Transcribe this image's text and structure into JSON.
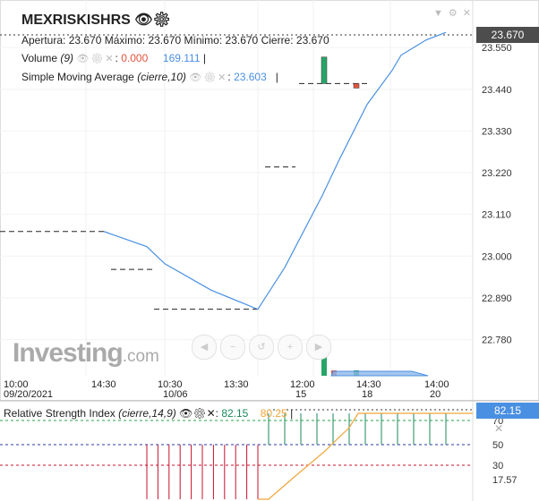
{
  "header": {
    "symbol": "MEXRISKISHRS",
    "ohlc_open_label": "Apertura:",
    "ohlc_open": "23.670",
    "ohlc_high_label": "Máximo:",
    "ohlc_high": "23.670",
    "ohlc_low_label": "Mínimo:",
    "ohlc_low": "23.670",
    "ohlc_close_label": "Cierre:",
    "ohlc_close": "23.670",
    "volume_label": "Volume",
    "volume_param": "(9)",
    "volume_value1": "0.000",
    "volume_value2": "169.111",
    "sma_label": "Simple Moving Average",
    "sma_param": "(cierre,10)",
    "sma_value": "23.603"
  },
  "logo": {
    "main": "Investing",
    "suffix": ".com"
  },
  "price_box": "23.670",
  "rsi": {
    "label": "Relative Strength Index",
    "param": "(cierre,14,9)",
    "value1": "82.15",
    "value2": "80.25",
    "box": "82.15",
    "levels": [
      "70",
      "50",
      "30",
      "17.57"
    ]
  },
  "colors": {
    "sma": "#4a90e2",
    "bull": "#27a567",
    "bear": "#e4543c",
    "rsi_signal": "#f0a53a",
    "rsi_up": "#1a8a5a",
    "rsi_down": "#c8102e",
    "price_box": "#4d4d4d",
    "rsi_box": "#4a90e2"
  },
  "chart_data": {
    "type": "line",
    "y_ticks": [
      "23.550",
      "23.440",
      "23.330",
      "23.220",
      "23.110",
      "23.000",
      "22.890",
      "22.780"
    ],
    "x_ticks": [
      {
        "t1": "10:00",
        "t2": "09/20/2021"
      },
      {
        "t1": "14:30",
        "t2": ""
      },
      {
        "t1": "10:30",
        "t2": "10/06"
      },
      {
        "t1": "13:30",
        "t2": ""
      },
      {
        "t1": "12:00",
        "t2": "15"
      },
      {
        "t1": "14:30",
        "t2": "18"
      },
      {
        "t1": "14:00",
        "t2": "20"
      }
    ],
    "ylim": [
      22.72,
      23.64
    ],
    "price_segments": [
      {
        "x0": 0,
        "x1": 1.9,
        "y": 23.065
      },
      {
        "x0": 2.1,
        "x1": 2.9,
        "y": 22.965
      },
      {
        "x0": 3.1,
        "x1": 5.9,
        "y": 22.86
      },
      {
        "x0": 5.1,
        "x1": 5.9,
        "y": 23.235
      },
      {
        "x0": 6.7,
        "x1": 7.9,
        "y": 23.455
      }
    ],
    "candles": [
      {
        "x": 7.3,
        "open": 23.455,
        "close": 23.525,
        "bull": true
      },
      {
        "x": 7.95,
        "open": 23.455,
        "close": 23.445,
        "bull": false
      }
    ],
    "sma": [
      [
        2.3,
        23.065
      ],
      [
        3.3,
        23.025
      ],
      [
        3.8,
        22.98
      ],
      [
        4.7,
        22.91
      ],
      [
        5.8,
        22.86
      ],
      [
        6.4,
        22.97
      ],
      [
        7.2,
        23.16
      ],
      [
        7.6,
        23.25
      ],
      [
        8.2,
        23.4
      ],
      [
        8.8,
        23.49
      ],
      [
        9.0,
        23.53
      ],
      [
        9.6,
        23.57
      ],
      [
        10.0,
        23.59
      ]
    ],
    "volume": [
      {
        "x": 7.2,
        "v": 169.111,
        "bull": true
      },
      {
        "x": 7.45,
        "v": 12,
        "bull": false
      },
      {
        "x": 7.95,
        "v": 10,
        "bull": true
      }
    ],
    "rsi_line": [
      [
        5.7,
        17.57
      ],
      [
        6.1,
        17.57
      ],
      [
        6.6,
        30
      ],
      [
        7.3,
        50
      ],
      [
        7.9,
        70
      ],
      [
        8.3,
        82
      ],
      [
        10,
        82
      ]
    ],
    "rsi_bars_down": [
      3.3,
      3.55,
      3.8,
      4.05,
      4.3,
      4.55,
      4.8,
      5.05,
      5.3,
      5.55,
      5.8
    ],
    "rsi_bars_up": [
      6.0,
      6.35,
      6.7,
      7.05,
      7.4,
      7.75,
      8.1,
      8.45,
      8.8,
      9.15,
      9.5,
      9.85
    ],
    "rsi_ylim": [
      10,
      90
    ]
  }
}
